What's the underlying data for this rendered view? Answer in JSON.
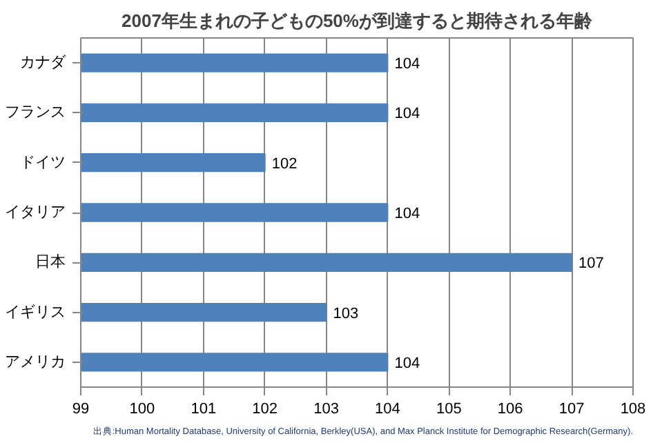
{
  "chart_data": {
    "type": "bar",
    "orientation": "horizontal",
    "title": "2007年生まれの子どもの50%が到達すると期待される年齢",
    "categories": [
      "カナダ",
      "フランス",
      "ドイツ",
      "イタリア",
      "日本",
      "イギリス",
      "アメリカ"
    ],
    "values": [
      104,
      104,
      102,
      104,
      107,
      103,
      104
    ],
    "color": "#4f81bd",
    "data_labels": true,
    "xlim": [
      99,
      108
    ],
    "xticks": [
      99,
      100,
      101,
      102,
      103,
      104,
      105,
      106,
      107,
      108
    ],
    "grid": "x",
    "annotations": [
      "出典:Human Mortality Database, University of California, Berkley(USA), and Max Planck Institute for Demographic Research(Germany)."
    ]
  }
}
